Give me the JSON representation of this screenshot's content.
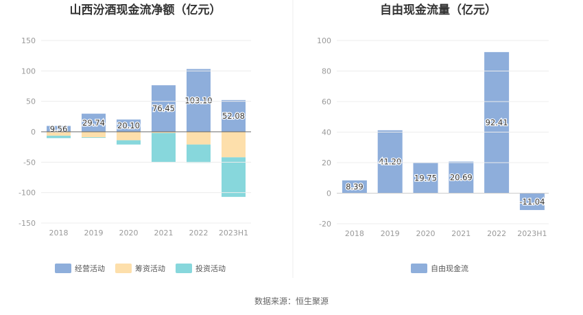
{
  "chart_data": [
    {
      "type": "bar",
      "stacked": true,
      "title": "山西汾酒现金流净额（亿元）",
      "categories": [
        "2018",
        "2019",
        "2020",
        "2021",
        "2022",
        "2023H1"
      ],
      "series": [
        {
          "name": "经营活动",
          "color": "#8eaedb",
          "values": [
            9.56,
            29.74,
            20.1,
            76.45,
            103.1,
            52.08
          ],
          "labels": [
            "9.56",
            "29.74",
            "20.10",
            "76.45",
            "103.10",
            "52.08"
          ]
        },
        {
          "name": "筹资活动",
          "color": "#fddfab",
          "values": [
            -6.5,
            -9,
            -14,
            -2,
            -21,
            -42
          ]
        },
        {
          "name": "投资活动",
          "color": "#87d7dc",
          "values": [
            -4,
            -1,
            -7,
            -48,
            -30,
            -65
          ]
        }
      ],
      "ylim": [
        -150,
        150
      ],
      "yticks": [
        150,
        100,
        50,
        0,
        -50,
        -100,
        -150
      ],
      "legend_position": "bottom",
      "legend": [
        "经营活动",
        "筹资活动",
        "投资活动"
      ]
    },
    {
      "type": "bar",
      "title": "自由现金流量（亿元）",
      "categories": [
        "2018",
        "2019",
        "2020",
        "2021",
        "2022",
        "2023H1"
      ],
      "series": [
        {
          "name": "自由现金流",
          "color": "#8eaedb",
          "values": [
            8.39,
            41.2,
            19.75,
            20.69,
            92.41,
            -11.04
          ],
          "labels": [
            "8.39",
            "41.20",
            "19.75",
            "20.69",
            "92.41",
            "-11.04"
          ]
        }
      ],
      "ylim": [
        -20,
        100
      ],
      "yticks": [
        100,
        80,
        60,
        40,
        20,
        0,
        -20
      ],
      "legend_position": "bottom",
      "legend": [
        "自由现金流"
      ]
    }
  ],
  "source": "数据来源：恒生聚源"
}
